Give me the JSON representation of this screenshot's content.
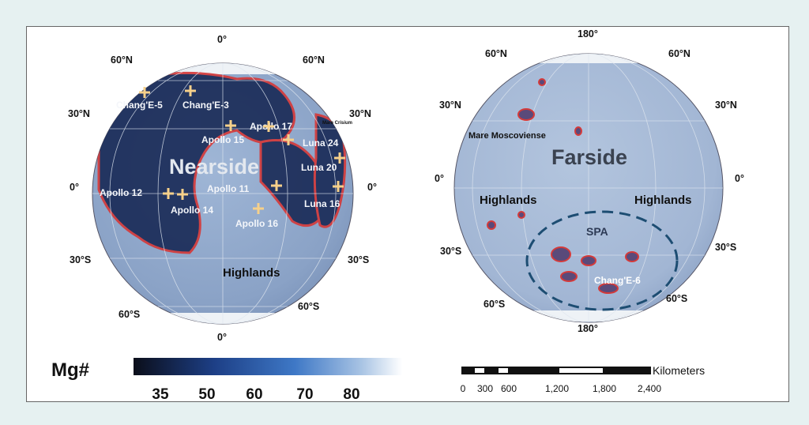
{
  "nearside": {
    "title": "Nearside",
    "region_label": "Highlands",
    "lat_labels": {
      "n60": "60°N",
      "n30": "30°N",
      "eq": "0°",
      "s30": "30°S",
      "s60": "60°S"
    },
    "lon_top": "0°",
    "lon_bottom": "0°",
    "mare_label": "Mare Crisium",
    "sites": [
      {
        "name": "Chang'E-5"
      },
      {
        "name": "Chang'E-3"
      },
      {
        "name": "Apollo 17"
      },
      {
        "name": "Apollo 15"
      },
      {
        "name": "Luna 24"
      },
      {
        "name": "Luna 20"
      },
      {
        "name": "Apollo 11"
      },
      {
        "name": "Apollo 12"
      },
      {
        "name": "Apollo 14"
      },
      {
        "name": "Luna 16"
      },
      {
        "name": "Apollo 16"
      }
    ]
  },
  "farside": {
    "title": "Farside",
    "highlands_left": "Highlands",
    "highlands_right": "Highlands",
    "mare_label": "Mare Moscoviense",
    "basin_label": "SPA",
    "site": "Chang'E-6",
    "lat_labels": {
      "n60": "60°N",
      "n30": "30°N",
      "eq": "0°",
      "s30": "30°S",
      "s60": "60°S"
    },
    "lon_top": "180°",
    "lon_bottom": "180°"
  },
  "colorbar": {
    "label": "Mg#",
    "ticks": [
      "35",
      "50",
      "60",
      "70",
      "80"
    ],
    "colors": [
      "#0b0e1a",
      "#1d3f86",
      "#3e78c6",
      "#8fb4de",
      "#ffffff"
    ]
  },
  "scalebar": {
    "unit": "Kilometers",
    "ticks": [
      "0",
      "300",
      "600",
      "1,200",
      "1,800",
      "2,400"
    ]
  },
  "colors": {
    "mare_outline": "#d43a3a",
    "site_marker": "#f6d08a",
    "globe": "#8fa7c9",
    "background": "#e6f1f1"
  }
}
